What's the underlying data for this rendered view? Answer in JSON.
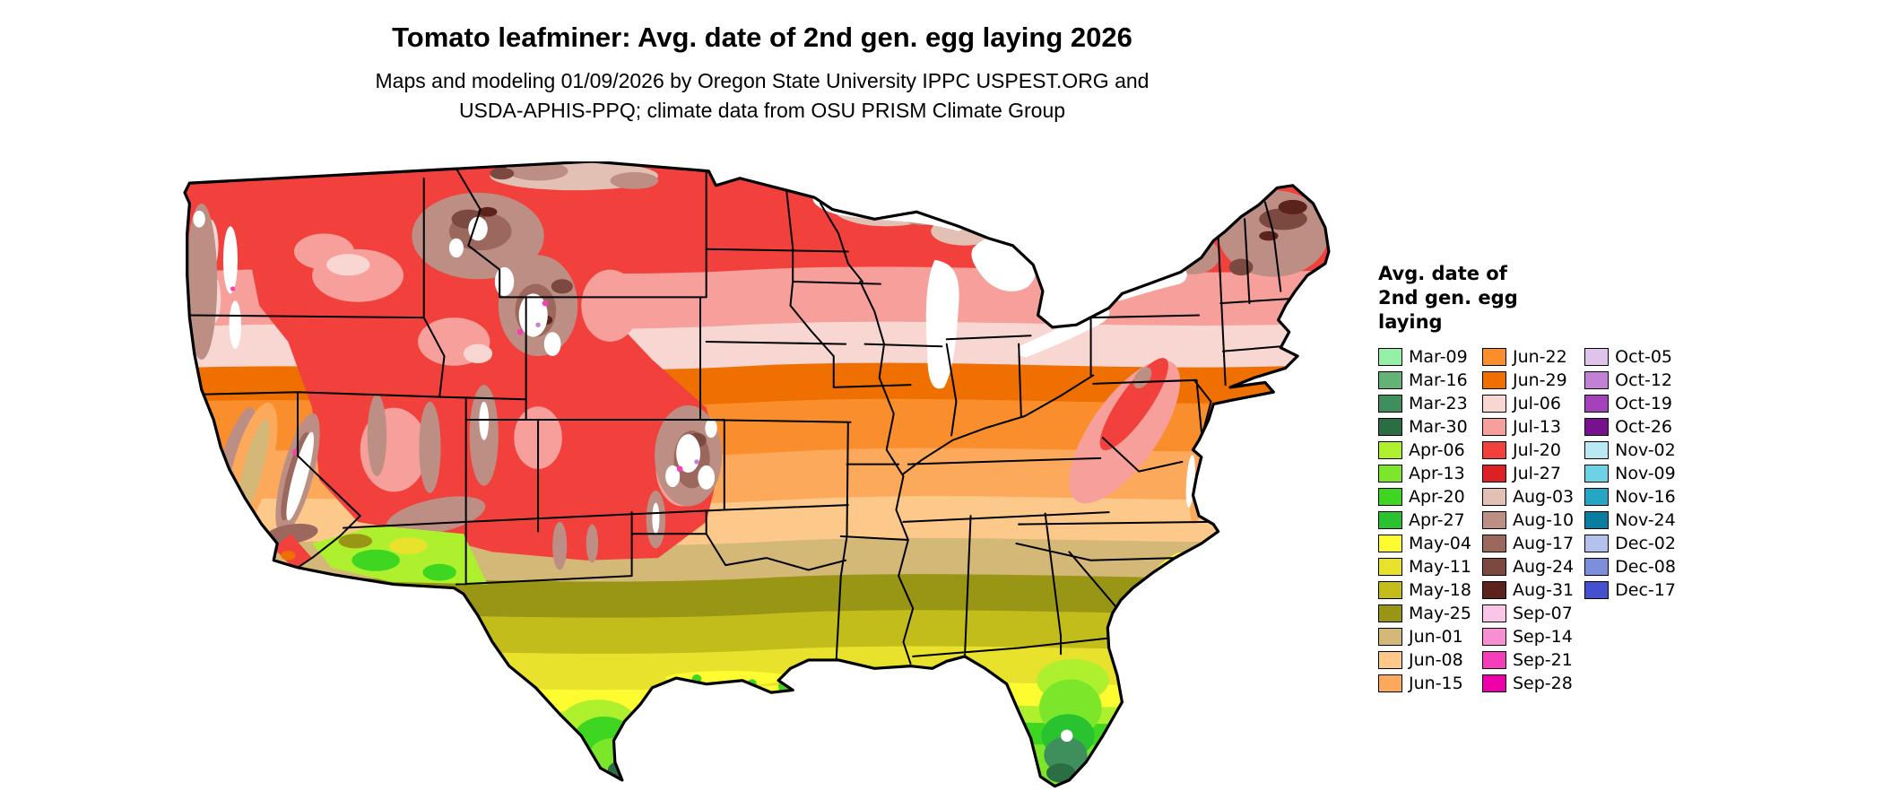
{
  "title": "Tomato leafminer: Avg. date of 2nd gen. egg laying 2026",
  "subtitle_line1": "Maps and modeling 01/09/2026 by Oregon State University IPPC USPEST.ORG and",
  "subtitle_line2": "USDA-APHIS-PPQ; climate data from OSU PRISM Climate Group",
  "legend": {
    "title": "Avg. date of\n2nd gen. egg\nlaying",
    "columns": [
      [
        {
          "label": "Mar-09",
          "color": "#94f0a6"
        },
        {
          "label": "Mar-16",
          "color": "#63b377"
        },
        {
          "label": "Mar-23",
          "color": "#3f8f5c"
        },
        {
          "label": "Mar-30",
          "color": "#2b6e44"
        },
        {
          "label": "Apr-06",
          "color": "#aef02e"
        },
        {
          "label": "Apr-13",
          "color": "#7ce62a"
        },
        {
          "label": "Apr-20",
          "color": "#3fd622"
        },
        {
          "label": "Apr-27",
          "color": "#28c32e"
        },
        {
          "label": "May-04",
          "color": "#fcfc30"
        },
        {
          "label": "May-11",
          "color": "#e8e22c"
        },
        {
          "label": "May-18",
          "color": "#c2bd1a"
        },
        {
          "label": "May-25",
          "color": "#989614"
        },
        {
          "label": "Jun-01",
          "color": "#d4b878"
        },
        {
          "label": "Jun-08",
          "color": "#fcc98b"
        },
        {
          "label": "Jun-15",
          "color": "#fda95c"
        }
      ],
      [
        {
          "label": "Jun-22",
          "color": "#fb8e2c"
        },
        {
          "label": "Jun-29",
          "color": "#ef7000"
        },
        {
          "label": "Jul-06",
          "color": "#f8d7d3"
        },
        {
          "label": "Jul-13",
          "color": "#f79f9a"
        },
        {
          "label": "Jul-20",
          "color": "#f2413c"
        },
        {
          "label": "Jul-27",
          "color": "#dd2026"
        },
        {
          "label": "Aug-03",
          "color": "#e3c0b4"
        },
        {
          "label": "Aug-10",
          "color": "#bd8e84"
        },
        {
          "label": "Aug-17",
          "color": "#9c685e"
        },
        {
          "label": "Aug-24",
          "color": "#7c4940"
        },
        {
          "label": "Aug-31",
          "color": "#5c231d"
        },
        {
          "label": "Sep-07",
          "color": "#fac6e8"
        },
        {
          "label": "Sep-14",
          "color": "#f78fd2"
        },
        {
          "label": "Sep-21",
          "color": "#f73eba"
        },
        {
          "label": "Sep-28",
          "color": "#ed00aa"
        }
      ],
      [
        {
          "label": "Oct-05",
          "color": "#dfc3eb"
        },
        {
          "label": "Oct-12",
          "color": "#c281d4"
        },
        {
          "label": "Oct-19",
          "color": "#a342bb"
        },
        {
          "label": "Oct-26",
          "color": "#781190"
        },
        {
          "label": "Nov-02",
          "color": "#b9e9f2"
        },
        {
          "label": "Nov-09",
          "color": "#6ed2e6"
        },
        {
          "label": "Nov-16",
          "color": "#27a5c5"
        },
        {
          "label": "Nov-24",
          "color": "#0a7da2"
        },
        {
          "label": "Dec-02",
          "color": "#b5c1ed"
        },
        {
          "label": "Dec-08",
          "color": "#7d8edd"
        },
        {
          "label": "Dec-17",
          "color": "#4550ce"
        }
      ]
    ]
  },
  "map": {
    "outline_color": "#000000",
    "water_color": "#ffffff",
    "snow_color": "#ffffff"
  }
}
